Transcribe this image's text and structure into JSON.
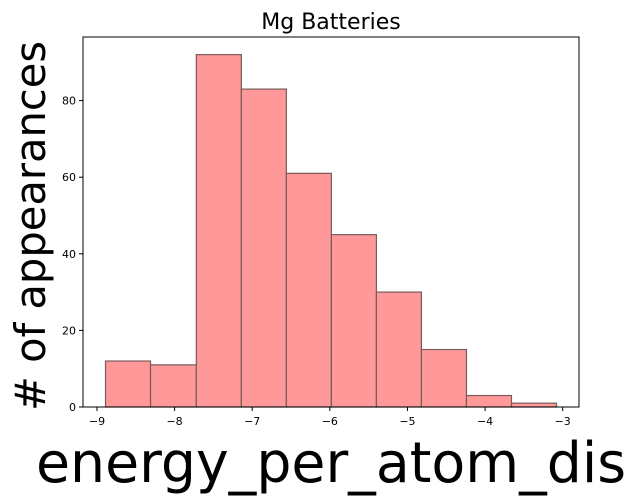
{
  "chart_data": {
    "type": "bar",
    "title": "Mg Batteries",
    "xlabel": "energy_per_atom_dis",
    "ylabel": "# of appearances",
    "bins": [
      {
        "x0": -8.89,
        "x1": -8.31,
        "value": 12
      },
      {
        "x0": -8.31,
        "x1": -7.72,
        "value": 11
      },
      {
        "x0": -7.72,
        "x1": -7.14,
        "value": 92
      },
      {
        "x0": -7.14,
        "x1": -6.56,
        "value": 83
      },
      {
        "x0": -6.56,
        "x1": -5.98,
        "value": 61
      },
      {
        "x0": -5.98,
        "x1": -5.4,
        "value": 45
      },
      {
        "x0": -5.4,
        "x1": -4.82,
        "value": 30
      },
      {
        "x0": -4.82,
        "x1": -4.24,
        "value": 15
      },
      {
        "x0": -4.24,
        "x1": -3.66,
        "value": 3
      },
      {
        "x0": -3.66,
        "x1": -3.08,
        "value": 1
      }
    ],
    "xlim": [
      -9.18,
      -2.79
    ],
    "ylim": [
      0,
      96.6
    ],
    "xticks": [
      -9,
      -8,
      -7,
      -6,
      -5,
      -4,
      -3
    ],
    "xtick_labels": [
      "−9",
      "−8",
      "−7",
      "−6",
      "−5",
      "−4",
      "−3"
    ],
    "yticks": [
      0,
      20,
      40,
      60,
      80
    ],
    "ytick_labels": [
      "0",
      "20",
      "40",
      "60",
      "80"
    ],
    "grid": false,
    "bar_color": "#ff9999",
    "bar_edge_color": "#7a5a5a"
  }
}
